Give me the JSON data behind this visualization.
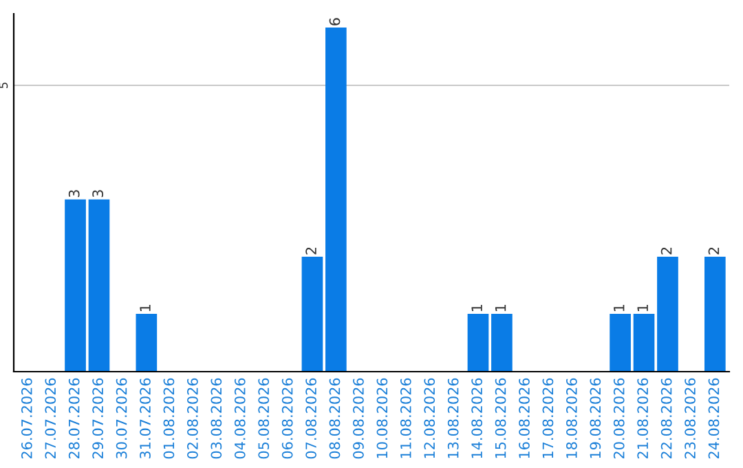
{
  "chart_data": {
    "type": "bar",
    "categories": [
      "26.07.2026",
      "27.07.2026",
      "28.07.2026",
      "29.07.2026",
      "30.07.2026",
      "31.07.2026",
      "01.08.2026",
      "02.08.2026",
      "03.08.2026",
      "04.08.2026",
      "05.08.2026",
      "06.08.2026",
      "07.08.2026",
      "08.08.2026",
      "09.08.2026",
      "10.08.2026",
      "11.08.2026",
      "12.08.2026",
      "13.08.2026",
      "14.08.2026",
      "15.08.2026",
      "16.08.2026",
      "17.08.2026",
      "18.08.2026",
      "19.08.2026",
      "20.08.2026",
      "21.08.2026",
      "22.08.2026",
      "23.08.2026",
      "24.08.2026"
    ],
    "values": [
      0,
      0,
      3,
      3,
      0,
      1,
      0,
      0,
      0,
      0,
      0,
      0,
      2,
      6,
      0,
      0,
      0,
      0,
      0,
      1,
      1,
      0,
      0,
      0,
      0,
      1,
      1,
      2,
      0,
      2
    ],
    "value_labels": [
      null,
      null,
      "3",
      "3",
      null,
      "1",
      null,
      null,
      null,
      null,
      null,
      null,
      "2",
      "6",
      null,
      null,
      null,
      null,
      null,
      "1",
      "1",
      null,
      null,
      null,
      null,
      "1",
      "1",
      "2",
      null,
      "2"
    ],
    "color": "#0a7ce6",
    "ylim": [
      0,
      6.25
    ],
    "yticks": [
      5
    ],
    "grid": "y",
    "legend": false
  }
}
